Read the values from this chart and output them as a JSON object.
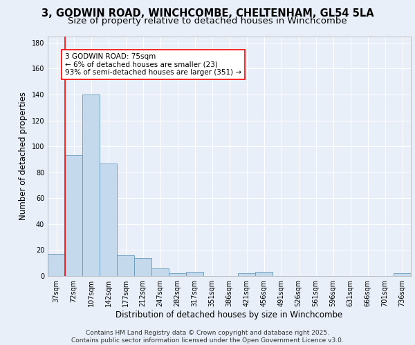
{
  "title_line1": "3, GODWIN ROAD, WINCHCOMBE, CHELTENHAM, GL54 5LA",
  "title_line2": "Size of property relative to detached houses in Winchcombe",
  "xlabel": "Distribution of detached houses by size in Winchcombe",
  "ylabel": "Number of detached properties",
  "bar_labels": [
    "37sqm",
    "72sqm",
    "107sqm",
    "142sqm",
    "177sqm",
    "212sqm",
    "247sqm",
    "282sqm",
    "317sqm",
    "351sqm",
    "386sqm",
    "421sqm",
    "456sqm",
    "491sqm",
    "526sqm",
    "561sqm",
    "596sqm",
    "631sqm",
    "666sqm",
    "701sqm",
    "736sqm"
  ],
  "bar_values": [
    17,
    93,
    140,
    87,
    16,
    14,
    6,
    2,
    3,
    0,
    0,
    2,
    3,
    0,
    0,
    0,
    0,
    0,
    0,
    0,
    2
  ],
  "bar_color": "#c5d9ec",
  "bar_edge_color": "#6699bb",
  "bar_edge_width": 0.6,
  "red_line_x": 0.5,
  "annotation_text": "3 GODWIN ROAD: 75sqm\n← 6% of detached houses are smaller (23)\n93% of semi-detached houses are larger (351) →",
  "annotation_box_color": "white",
  "annotation_box_edge": "red",
  "ylim": [
    0,
    185
  ],
  "yticks": [
    0,
    20,
    40,
    60,
    80,
    100,
    120,
    140,
    160,
    180
  ],
  "background_color": "#e8eff8",
  "plot_background": "#e8eff8",
  "grid_color": "white",
  "footer_line1": "Contains HM Land Registry data © Crown copyright and database right 2025.",
  "footer_line2": "Contains public sector information licensed under the Open Government Licence v3.0.",
  "title_fontsize": 10.5,
  "subtitle_fontsize": 9.5,
  "axis_label_fontsize": 8.5,
  "tick_fontsize": 7,
  "annotation_fontsize": 7.5,
  "footer_fontsize": 6.5
}
